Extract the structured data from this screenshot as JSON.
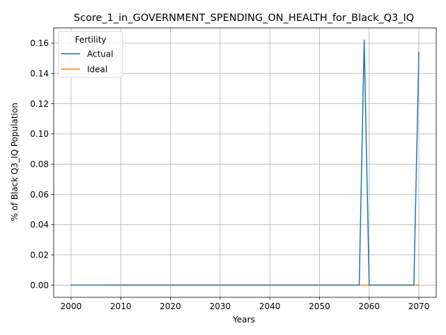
{
  "chart_data": {
    "type": "line",
    "title": "Score_1_in_GOVERNMENT_SPENDING_ON_HEALTH_for_Black_Q3_IQ",
    "xlabel": "Years",
    "ylabel": "% of Black Q3_IQ Population",
    "xlim": [
      1996.5,
      2073.5
    ],
    "ylim": [
      -0.0081,
      0.1701
    ],
    "xticks": [
      2000,
      2010,
      2020,
      2030,
      2040,
      2050,
      2060,
      2070
    ],
    "yticks": [
      0.0,
      0.02,
      0.04,
      0.06,
      0.08,
      0.1,
      0.12,
      0.14,
      0.16
    ],
    "ytick_labels": [
      "0.00",
      "0.02",
      "0.04",
      "0.06",
      "0.08",
      "0.10",
      "0.12",
      "0.14",
      "0.16"
    ],
    "grid": true,
    "legend": {
      "title": "Fertility",
      "placement": "top-left"
    },
    "series": [
      {
        "name": "Actual",
        "color": "#1f77b4",
        "points": [
          [
            2000,
            0.0
          ],
          [
            2007,
            0.0
          ],
          [
            2058,
            0.0
          ],
          [
            2059,
            0.162
          ],
          [
            2060,
            0.0
          ],
          [
            2069,
            0.0
          ],
          [
            2070,
            0.154
          ]
        ]
      },
      {
        "name": "Ideal",
        "color": "#ff7f0e",
        "points": [
          [
            2007,
            0.0
          ],
          [
            2070,
            0.0
          ]
        ]
      }
    ]
  }
}
